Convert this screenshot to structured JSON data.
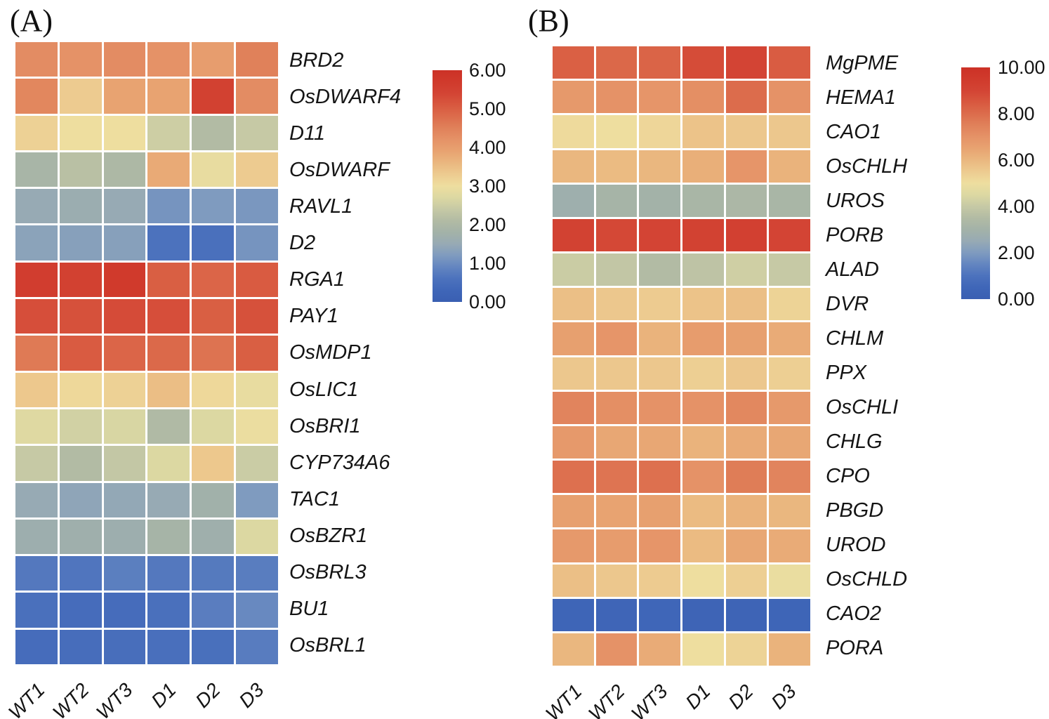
{
  "panels": [
    {
      "label": "(A)"
    },
    {
      "label": "(B)"
    }
  ],
  "chart_data": [
    {
      "type": "heatmap",
      "panel": "A",
      "title": "",
      "xlabel": "",
      "ylabel": "",
      "x_categories": [
        "WT1",
        "WT2",
        "WT3",
        "D1",
        "D2",
        "D3"
      ],
      "y_categories": [
        "BRD2",
        "OsDWARF4",
        "D11",
        "OsDWARF",
        "RAVL1",
        "D2",
        "RGA1",
        "PAY1",
        "OsMDP1",
        "OsLIC1",
        "OsBRI1",
        "CYP734A6",
        "TAC1",
        "OsBZR1",
        "OsBRL3",
        "BU1",
        "OsBRL1"
      ],
      "values": [
        [
          4.3,
          4.2,
          4.3,
          4.2,
          4.0,
          4.5
        ],
        [
          4.4,
          3.3,
          3.9,
          3.9,
          5.5,
          4.3
        ],
        [
          3.2,
          3.0,
          3.0,
          2.5,
          2.1,
          2.4
        ],
        [
          1.9,
          2.2,
          2.0,
          3.8,
          2.9,
          3.3
        ],
        [
          1.5,
          1.6,
          1.5,
          1.1,
          1.2,
          1.15
        ],
        [
          1.35,
          1.3,
          1.3,
          0.6,
          0.55,
          1.1
        ],
        [
          5.6,
          5.5,
          5.7,
          5.0,
          4.9,
          5.05
        ],
        [
          5.25,
          5.2,
          5.3,
          5.25,
          5.0,
          5.2
        ],
        [
          4.6,
          5.05,
          4.9,
          4.85,
          4.7,
          5.0
        ],
        [
          3.35,
          3.1,
          3.2,
          3.5,
          3.1,
          2.9
        ],
        [
          2.75,
          2.55,
          2.65,
          2.05,
          2.7,
          2.95
        ],
        [
          2.4,
          2.1,
          2.35,
          2.7,
          3.35,
          2.45
        ],
        [
          1.5,
          1.4,
          1.45,
          1.5,
          1.75,
          1.2
        ],
        [
          1.65,
          1.7,
          1.65,
          1.85,
          1.7,
          2.7
        ],
        [
          0.7,
          0.65,
          0.8,
          0.7,
          0.72,
          0.77
        ],
        [
          0.55,
          0.45,
          0.45,
          0.55,
          0.78,
          0.95
        ],
        [
          0.45,
          0.48,
          0.5,
          0.52,
          0.54,
          0.76
        ]
      ],
      "colorbar": {
        "min": 0,
        "max": 6,
        "tick_labels": [
          "6.00",
          "5.00",
          "4.00",
          "3.00",
          "2.00",
          "1.00",
          "0.00"
        ]
      },
      "colormap": {
        "low": "#3a5fb2",
        "mid": "#eede9f",
        "high": "#cc3126"
      },
      "legend_position": "right",
      "grid": false
    },
    {
      "type": "heatmap",
      "panel": "B",
      "title": "",
      "xlabel": "",
      "ylabel": "",
      "x_categories": [
        "WT1",
        "WT2",
        "WT3",
        "D1",
        "D2",
        "D3"
      ],
      "y_categories": [
        "MgPME",
        "HEMA1",
        "CAO1",
        "OsCHLH",
        "UROS",
        "PORB",
        "ALAD",
        "DVR",
        "CHLM",
        "PPX",
        "OsCHLI",
        "CHLG",
        "CPO",
        "PBGD",
        "UROD",
        "OsCHLD",
        "CAO2",
        "PORA"
      ],
      "values": [
        [
          8.3,
          8.1,
          8.2,
          8.8,
          9.0,
          8.4
        ],
        [
          6.8,
          7.0,
          6.9,
          7.1,
          8.0,
          7.0
        ],
        [
          5.1,
          5.0,
          5.2,
          5.7,
          5.6,
          5.6
        ],
        [
          6.0,
          5.9,
          6.0,
          6.2,
          6.9,
          6.1
        ],
        [
          2.8,
          3.1,
          3.0,
          3.2,
          3.3,
          3.2
        ],
        [
          9.1,
          8.9,
          9.0,
          9.1,
          9.2,
          9.0
        ],
        [
          4.1,
          3.9,
          3.5,
          3.8,
          4.2,
          4.0
        ],
        [
          5.8,
          5.6,
          5.5,
          5.7,
          5.8,
          5.3
        ],
        [
          6.6,
          6.9,
          6.1,
          6.7,
          6.6,
          6.3
        ],
        [
          5.6,
          5.6,
          5.6,
          5.4,
          5.6,
          5.4
        ],
        [
          7.4,
          7.1,
          7.0,
          7.0,
          7.3,
          6.8
        ],
        [
          6.8,
          6.4,
          6.4,
          6.1,
          6.3,
          6.4
        ],
        [
          7.9,
          7.8,
          7.9,
          7.0,
          7.6,
          7.4
        ],
        [
          6.6,
          6.5,
          6.6,
          5.9,
          6.1,
          6.0
        ],
        [
          6.8,
          6.7,
          6.9,
          5.9,
          6.4,
          6.3
        ],
        [
          5.8,
          5.6,
          5.5,
          5.0,
          5.4,
          4.9
        ],
        [
          0.4,
          0.45,
          0.5,
          0.35,
          0.35,
          0.4
        ],
        [
          6.0,
          7.0,
          6.3,
          5.0,
          5.3,
          6.1
        ]
      ],
      "colorbar": {
        "min": 0,
        "max": 10,
        "tick_labels": [
          "10.00",
          "8.00",
          "6.00",
          "4.00",
          "2.00",
          "0.00"
        ]
      },
      "colormap": {
        "low": "#3a5fb2",
        "mid": "#eede9f",
        "high": "#cc3126"
      },
      "legend_position": "right",
      "grid": false
    }
  ]
}
